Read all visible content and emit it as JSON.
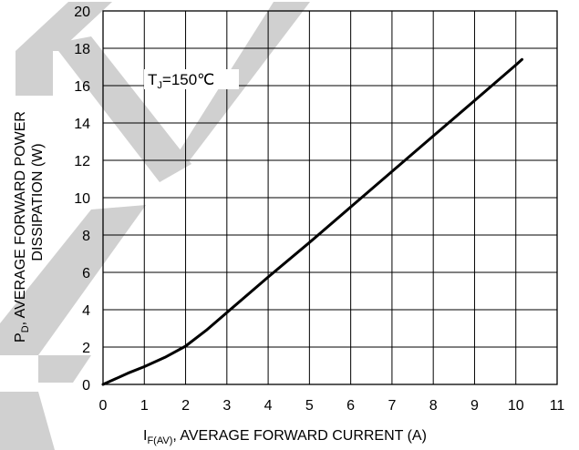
{
  "chart_data": {
    "type": "line",
    "xlabel": {
      "main": "I",
      "sub": "F(AV)",
      "rest": ", AVERAGE FORWARD CURRENT (A)"
    },
    "ylabel": {
      "line1_main": "P",
      "line1_sub": "D",
      "line1_rest": ", AVERAGE FORWARD POWER",
      "line2": "DISSIPATION (W)"
    },
    "annotation": {
      "main": "T",
      "sub": "J",
      "rest": "=150℃"
    },
    "xlim": [
      0,
      11
    ],
    "ylim": [
      0,
      20
    ],
    "x_ticks": [
      "0",
      "1",
      "2",
      "3",
      "4",
      "5",
      "6",
      "7",
      "8",
      "9",
      "10",
      "11"
    ],
    "y_ticks": [
      "0",
      "2",
      "4",
      "6",
      "8",
      "10",
      "12",
      "14",
      "16",
      "18",
      "20"
    ],
    "grid": true,
    "series": [
      {
        "x": [
          0,
          0.3,
          0.6,
          1.0,
          1.5,
          2.0,
          2.5,
          3.0,
          4.0,
          5.0,
          6.0,
          7.0,
          8.0,
          9.0,
          10.0,
          10.15
        ],
        "y": [
          0,
          0.3,
          0.6,
          0.95,
          1.45,
          2.05,
          2.9,
          3.85,
          5.75,
          7.6,
          9.5,
          11.4,
          13.3,
          15.2,
          17.1,
          17.4
        ]
      }
    ],
    "colors": {
      "line": "#000000",
      "grid": "#000000",
      "watermark": "#c8c8c8"
    }
  }
}
